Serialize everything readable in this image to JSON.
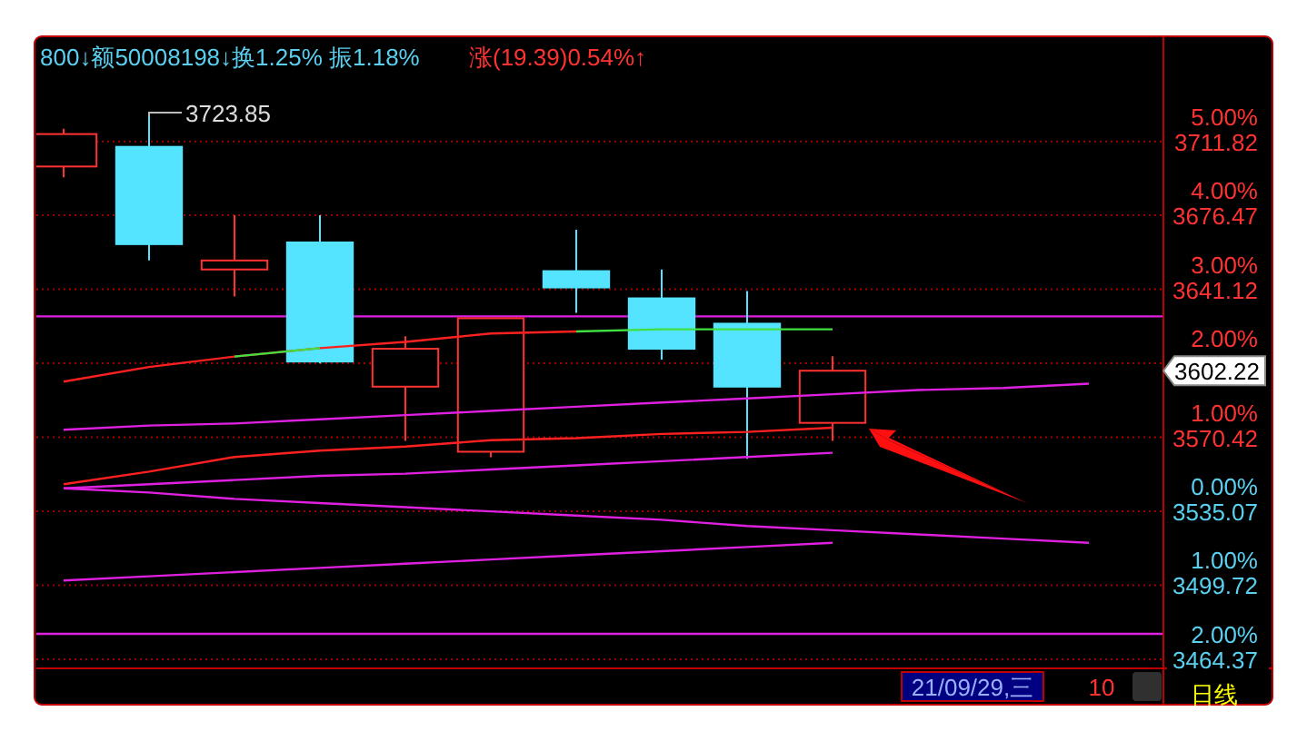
{
  "chart_data": {
    "type": "candlestick",
    "title": "800↓额50008198↓换1.25% 振1.18%",
    "subtitle": "涨(19.39)0.54%↑",
    "categories": [
      null,
      null,
      null,
      null,
      null,
      null,
      null,
      null,
      null,
      null,
      null,
      null,
      null
    ],
    "ohlc": [
      [
        3699.8,
        3717.9,
        3694.6,
        3715.3
      ],
      [
        3709.2,
        3723.85,
        3654.9,
        3662.7
      ],
      [
        3650.6,
        3676.5,
        3637.7,
        3654.9
      ],
      [
        3663.5,
        3676.5,
        3605.7,
        3606.6
      ],
      [
        3594.6,
        3618.7,
        3568.7,
        3612.7
      ],
      [
        3563.5,
        3627.3,
        3560.9,
        3627.3
      ],
      [
        3649.8,
        3669.6,
        3629.9,
        3642.0
      ],
      [
        3636.8,
        3650.6,
        3607.5,
        3612.7
      ],
      [
        3624.7,
        3640.3,
        3560.1,
        3594.6
      ],
      [
        3577.3,
        3609.2,
        3568.7,
        3602.22
      ],
      null,
      null,
      null
    ],
    "colors": [
      "#ff3232",
      "#54e4ff",
      "#ff3232",
      "#54e4ff",
      "#ff3232",
      "#ff3232",
      "#54e4ff",
      "#54e4ff",
      "#54e4ff",
      "#ff3232",
      null,
      null,
      null
    ],
    "series": [
      {
        "type": "line",
        "color": "#ff2020",
        "values": [
          3597,
          3604,
          3609,
          3613,
          3616,
          3620,
          3621,
          null,
          null,
          null,
          null,
          null,
          null
        ]
      },
      {
        "type": "line",
        "color": "#40e040",
        "values": [
          null,
          null,
          3609,
          3613,
          null,
          null,
          3621,
          3622,
          3622,
          3622,
          null,
          null,
          null
        ]
      },
      {
        "type": "line",
        "color": "#ff2020",
        "values": [
          3548,
          3554,
          3561,
          3564,
          3566,
          3569,
          3570,
          3572,
          3573,
          3575,
          null,
          null,
          null
        ]
      },
      {
        "type": "line",
        "color": "#e020e0",
        "values": [
          3574,
          3576,
          3577,
          3579,
          3581,
          3583,
          3585,
          3587,
          3589,
          3591,
          3593,
          3594,
          3596
        ]
      },
      {
        "type": "line",
        "color": "#e020e0",
        "values": [
          3546,
          3548,
          3550,
          3552,
          3553,
          3555,
          3557,
          3559,
          3561,
          3563,
          null,
          null,
          null
        ]
      },
      {
        "type": "line",
        "color": "#e020e0",
        "values": [
          3546,
          3544,
          3541,
          3539,
          3537,
          3535,
          3533,
          3531,
          3528,
          3526,
          3524,
          3522,
          3520
        ]
      },
      {
        "type": "line",
        "color": "#e020e0",
        "values": [
          3502,
          3504,
          3506,
          3508,
          3510,
          3512,
          3514,
          3516,
          3518,
          3520,
          null,
          null,
          null
        ]
      }
    ],
    "ref_lines": [
      {
        "axis": "y",
        "value": 3628.2,
        "color": "#e020e0"
      },
      {
        "axis": "y",
        "value": 3476.5,
        "color": "#e020e0"
      }
    ],
    "ylim": [
      3460,
      3762
    ],
    "yticks": [
      3711.82,
      3676.47,
      3641.12,
      {
        "value": 3605.77,
        "label": null
      },
      3570.42,
      3535.07,
      3499.72,
      3464.37
    ],
    "y2lim": [
      -2.124,
      6.42
    ],
    "y2ticks": [
      {
        "value": 5,
        "label": "5.00%"
      },
      {
        "value": 4,
        "label": "4.00%"
      },
      {
        "value": 3,
        "label": "3.00%"
      },
      {
        "value": 2,
        "label": "2.00%"
      },
      {
        "value": 1,
        "label": "1.00%"
      },
      {
        "value": 0,
        "label": "0.00%"
      },
      {
        "value": -1,
        "label": "1.00%"
      },
      {
        "value": -2,
        "label": "2.00%"
      }
    ],
    "tick_labels": "y",
    "grid": "y",
    "annotations": [
      "3723.85",
      "3602.22",
      "21/09/29,三",
      "10",
      "日线"
    ]
  }
}
